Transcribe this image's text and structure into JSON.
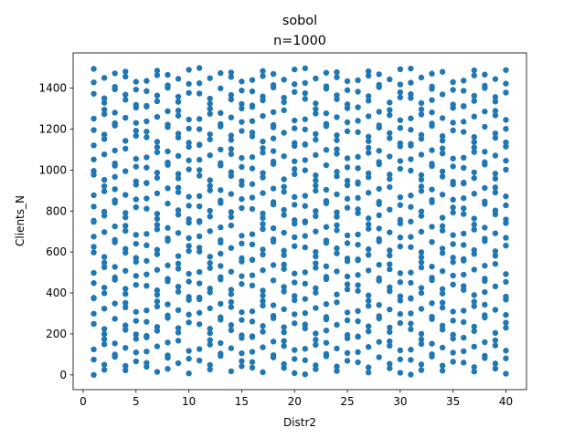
{
  "chart_data": {
    "type": "scatter",
    "title": "sobol",
    "subtitle": "n=1000",
    "xlabel": "Distr2",
    "ylabel": "Clients_N",
    "xlim": [
      -0.95,
      41.95
    ],
    "ylim": [
      -72,
      1572
    ],
    "xticks": [
      0,
      5,
      10,
      15,
      20,
      25,
      30,
      35,
      40
    ],
    "yticks": [
      0,
      200,
      400,
      600,
      800,
      1000,
      1200,
      1400
    ],
    "marker_color": "#1f77b4",
    "grid": false,
    "x_domain_integers": [
      1,
      40
    ],
    "y_range_observed": [
      0,
      1500
    ],
    "point_count": 1000
  }
}
